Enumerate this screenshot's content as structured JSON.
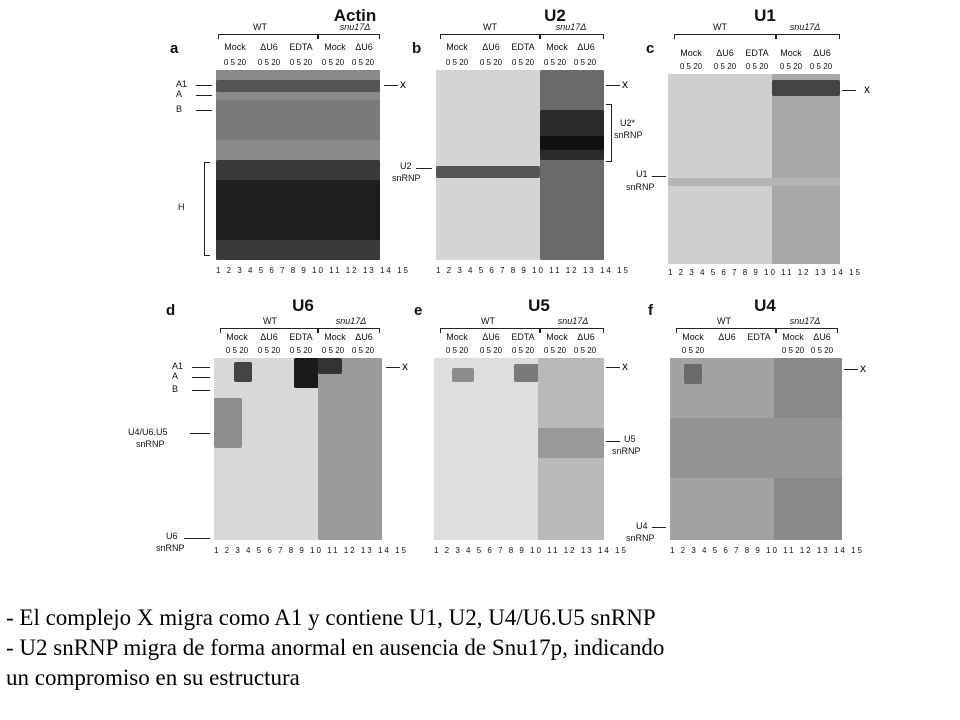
{
  "panels": [
    {
      "letter": "a",
      "title": "Actin"
    },
    {
      "letter": "b",
      "title": "U2"
    },
    {
      "letter": "c",
      "title": "U1"
    },
    {
      "letter": "d",
      "title": "U6"
    },
    {
      "letter": "e",
      "title": "U5"
    },
    {
      "letter": "f",
      "title": "U4"
    }
  ],
  "headers": {
    "wt": "WT",
    "snu17": "snu17Δ",
    "mock": "Mock",
    "du6": "ΔU6",
    "edta": "EDTA",
    "ticks": "0 5 20",
    "lanes": "1 2 3 4 5 6 7 8 9 10 11 12 13 14 15"
  },
  "markers": {
    "a1": "A1",
    "a": "A",
    "b": "B",
    "h": "H",
    "x": "x",
    "u2_snrnp_1": "U2",
    "u2_snrnp_2": "snRNP",
    "u2star_1": "U2*",
    "u2star_2": "snRNP",
    "u1_snrnp_1": "U1",
    "u1_snrnp_2": "snRNP",
    "u4u6u5_1": "U4/U6.U5",
    "u4u6u5_2": "snRNP",
    "u6_snrnp_1": "U6",
    "u6_snrnp_2": "snRNP",
    "u5_snrnp_1": "U5",
    "u5_snrnp_2": "snRNP",
    "u4_snrnp_1": "U4",
    "u4_snrnp_2": "snRNP"
  },
  "caption": {
    "line1": "- El complejo X migra como A1 y contiene U1, U2, U4/U6.U5  snRNP",
    "line2": "- U2 snRNP migra de forma anormal en ausencia de Snu17p, indicando",
    "line3": "un compromiso  en su estructura"
  }
}
